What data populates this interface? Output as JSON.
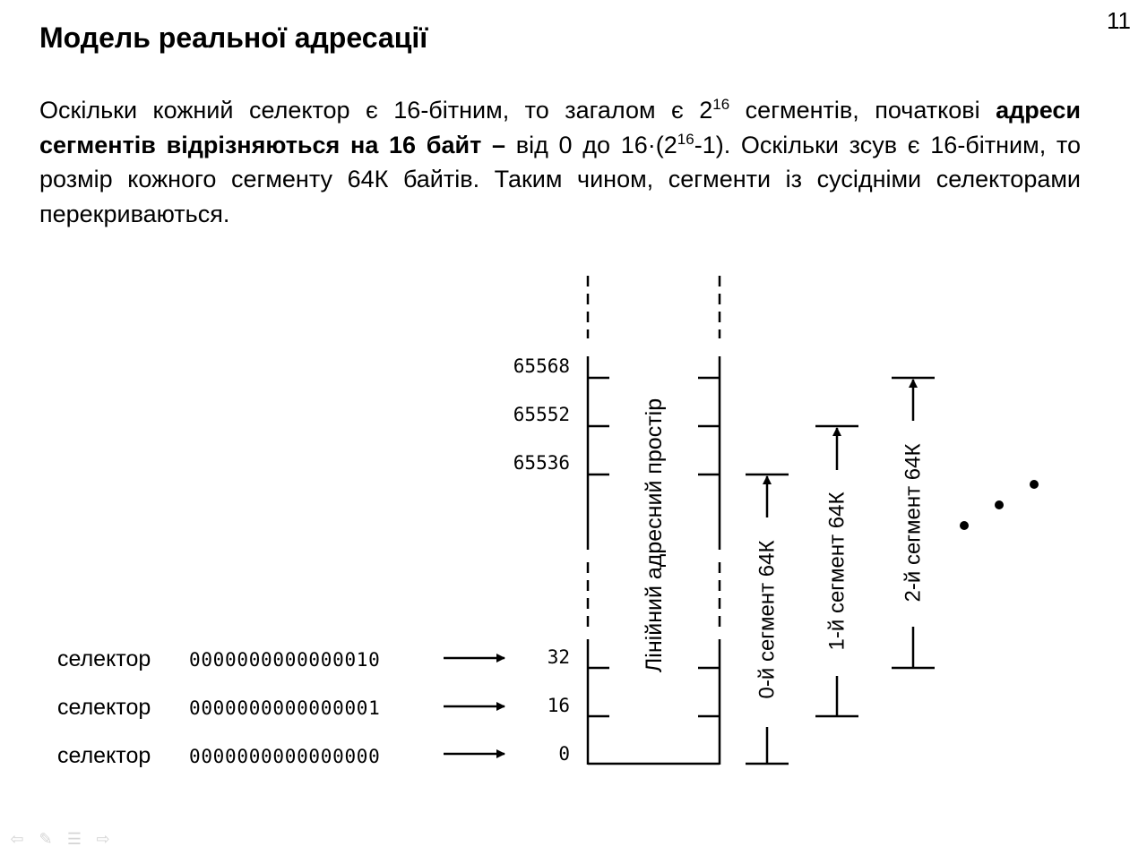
{
  "slide_number": "11",
  "title": "Модель реальної адресації",
  "paragraph": {
    "p1": "Оскільки кожний селектор є 16-бітним, то загалом є 2",
    "p1_sup": "16",
    "p2": " сегментів, початкові ",
    "p3_bold": "адреси сегментів відрізняються на 16 байт –",
    "p4": " від 0 до 16·(2",
    "p4_sup": "16",
    "p5": "-1). Оскільки зсув є 16-бітним, то розмір кожного сегменту 64К байтів. Таким чином, сегменти із сусідніми селекторами перекриваються."
  },
  "diagram": {
    "space_label": "Лінійний адресний простір",
    "addresses_top": [
      "65568",
      "65552",
      "65536"
    ],
    "selector_rows": [
      {
        "label": "селектор",
        "bits": "0000000000000010",
        "address": "32"
      },
      {
        "label": "селектор",
        "bits": "0000000000000001",
        "address": "16"
      },
      {
        "label": "селектор",
        "bits": "0000000000000000",
        "address": "0"
      }
    ],
    "segments": [
      "0-й сегмент 64К",
      "1-й сегмент 64К",
      "2-й сегмент 64К"
    ]
  },
  "nav_icons": [
    "prev-arrow-icon",
    "pen-icon",
    "menu-icon",
    "next-arrow-icon"
  ]
}
